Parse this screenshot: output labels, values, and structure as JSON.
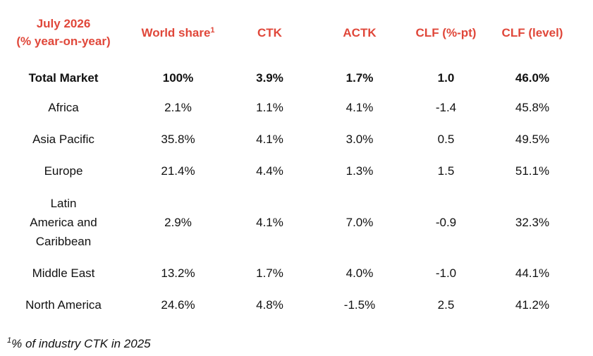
{
  "header": {
    "period_line1": "July 2026",
    "period_line2": "(% year-on-year)",
    "world_share": "World share",
    "world_share_sup": "1",
    "ctk": "CTK",
    "actk": "ACTK",
    "clf_pt": "CLF (%-pt)",
    "clf_level": "CLF (level)"
  },
  "total": {
    "region": "Total Market",
    "world_share": "100%",
    "ctk": "3.9%",
    "actk": "1.7%",
    "clf_pt": "1.0",
    "clf_level": "46.0%"
  },
  "rows": [
    {
      "region": "Africa",
      "world_share": "2.1%",
      "ctk": "1.1%",
      "actk": "4.1%",
      "clf_pt": "-1.4",
      "clf_level": "45.8%"
    },
    {
      "region": "Asia Pacific",
      "world_share": "35.8%",
      "ctk": "4.1%",
      "actk": "3.0%",
      "clf_pt": "0.5",
      "clf_level": "49.5%"
    },
    {
      "region": "Europe",
      "world_share": "21.4%",
      "ctk": "4.4%",
      "actk": "1.3%",
      "clf_pt": "1.5",
      "clf_level": "51.1%"
    },
    {
      "region_line1": "Latin",
      "region_line2": "America and",
      "region_line3": "Caribbean",
      "world_share": "2.9%",
      "ctk": "4.1%",
      "actk": "7.0%",
      "clf_pt": "-0.9",
      "clf_level": "32.3%"
    },
    {
      "region": "Middle East",
      "world_share": "13.2%",
      "ctk": "1.7%",
      "actk": "4.0%",
      "clf_pt": "-1.0",
      "clf_level": "44.1%"
    },
    {
      "region": "North America",
      "world_share": "24.6%",
      "ctk": "4.8%",
      "actk": "-1.5%",
      "clf_pt": "2.5",
      "clf_level": "41.2%"
    }
  ],
  "footnote": {
    "sup": "1",
    "text": "% of industry CTK in 2025"
  },
  "colors": {
    "header_accent": "#e0473a",
    "text": "#111111",
    "background": "#ffffff"
  }
}
